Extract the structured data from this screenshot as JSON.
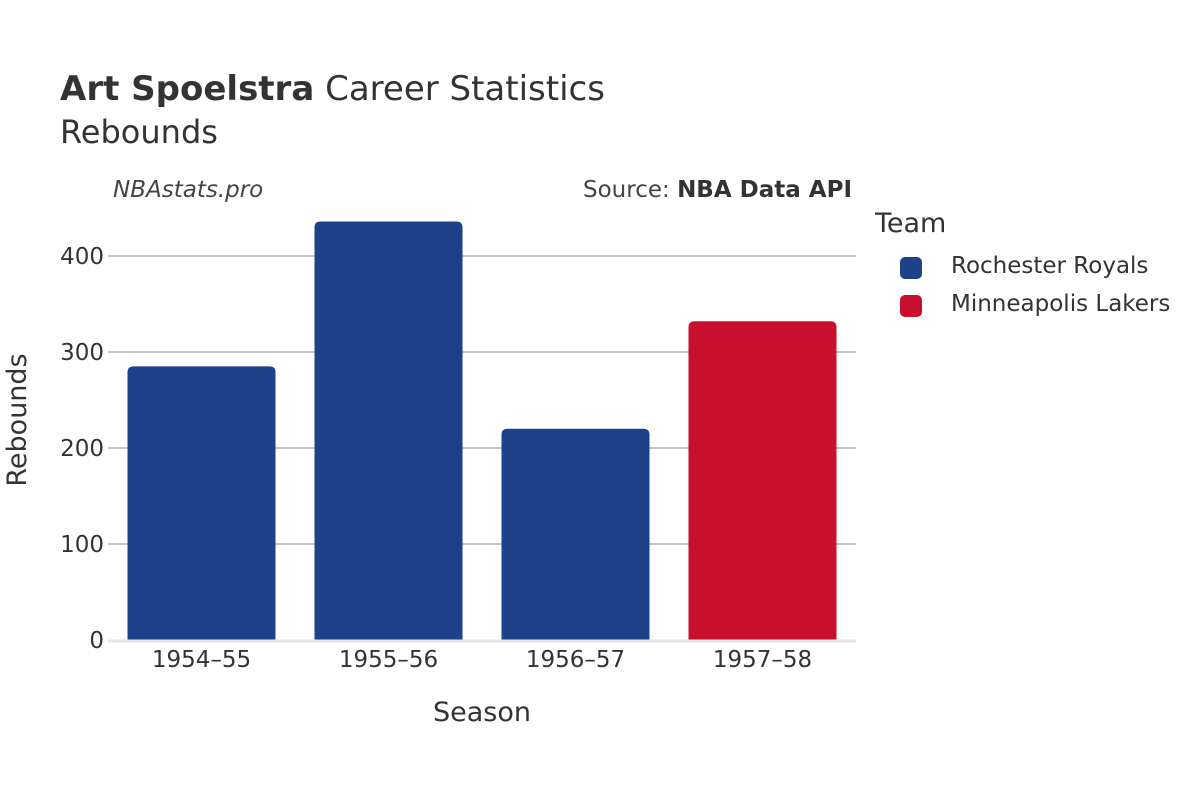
{
  "header": {
    "title_bold": "Art Spoelstra",
    "title_rest": "Career Statistics",
    "subtitle": "Rebounds",
    "watermark": "NBAstats.pro",
    "source_prefix": "Source: ",
    "source_bold": "NBA Data API"
  },
  "legend": {
    "title": "Team",
    "items": [
      {
        "label": "Rochester Royals",
        "color": "#1d428a"
      },
      {
        "label": "Minneapolis Lakers",
        "color": "#c8102e"
      }
    ]
  },
  "chart_data": {
    "type": "bar",
    "title": "Art Spoelstra Career Statistics",
    "subtitle": "Rebounds",
    "xlabel": "Season",
    "ylabel": "Rebounds",
    "ylim": [
      0,
      450
    ],
    "yticks": [
      0,
      100,
      200,
      300,
      400
    ],
    "grid": true,
    "legend_position": "right",
    "categories": [
      "1954–55",
      "1955–56",
      "1956–57",
      "1957–58"
    ],
    "values": [
      285,
      436,
      220,
      332
    ],
    "teams": [
      "Rochester Royals",
      "Rochester Royals",
      "Rochester Royals",
      "Minneapolis Lakers"
    ],
    "colors": [
      "#1d428a",
      "#1d428a",
      "#1d428a",
      "#c8102e"
    ]
  }
}
